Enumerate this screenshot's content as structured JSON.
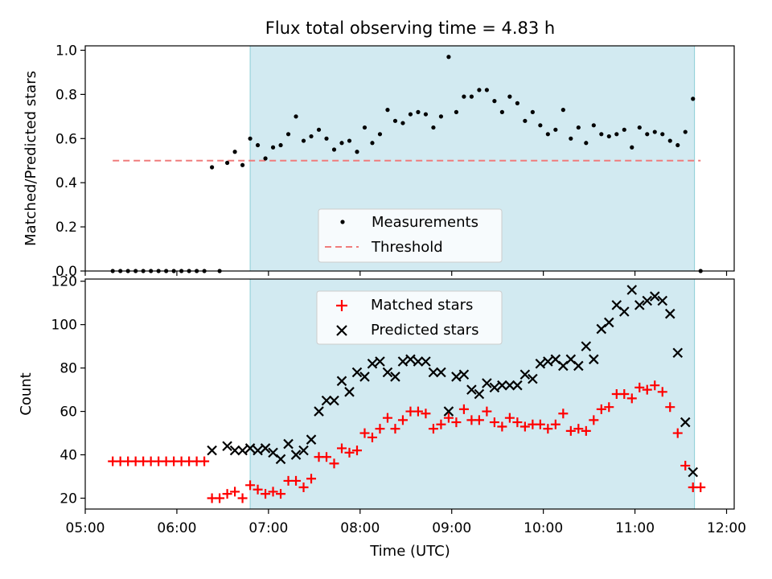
{
  "chart_data": [
    {
      "type": "scatter",
      "title": "Flux total observing time = 4.83 h",
      "xlabel": "",
      "ylabel": "Matched/Predicted stars",
      "xlim": [
        "05:00",
        "12:05"
      ],
      "ylim": [
        0,
        1.02
      ],
      "yticks": [
        0.0,
        0.2,
        0.4,
        0.6,
        0.8,
        1.0
      ],
      "ytick_labels": [
        "0.0",
        "0.2",
        "0.4",
        "0.6",
        "0.8",
        "1.0"
      ],
      "observing_window": [
        "06:48",
        "11:39"
      ],
      "legend_position": "lower-center",
      "series": [
        {
          "name": "Measurements",
          "kind": "points",
          "color": "#000000",
          "x": [
            "05:18",
            "05:23",
            "05:28",
            "05:33",
            "05:38",
            "05:43",
            "05:48",
            "05:53",
            "05:58",
            "06:03",
            "06:08",
            "06:13",
            "06:18",
            "06:23",
            "06:28",
            "06:33",
            "06:38",
            "06:43",
            "06:48",
            "06:53",
            "06:58",
            "07:03",
            "07:08",
            "07:13",
            "07:18",
            "07:23",
            "07:28",
            "07:33",
            "07:38",
            "07:43",
            "07:48",
            "07:53",
            "07:58",
            "08:03",
            "08:08",
            "08:13",
            "08:18",
            "08:23",
            "08:28",
            "08:33",
            "08:38",
            "08:43",
            "08:48",
            "08:53",
            "08:58",
            "09:03",
            "09:08",
            "09:13",
            "09:18",
            "09:23",
            "09:28",
            "09:33",
            "09:38",
            "09:43",
            "09:48",
            "09:53",
            "09:58",
            "10:03",
            "10:08",
            "10:13",
            "10:18",
            "10:23",
            "10:28",
            "10:33",
            "10:38",
            "10:43",
            "10:48",
            "10:53",
            "10:58",
            "11:03",
            "11:08",
            "11:13",
            "11:18",
            "11:23",
            "11:28",
            "11:33",
            "11:38",
            "11:43"
          ],
          "y": [
            0,
            0,
            0,
            0,
            0,
            0,
            0,
            0,
            0,
            0,
            0,
            0,
            0,
            0.47,
            0,
            0.49,
            0.54,
            0.48,
            0.6,
            0.57,
            0.51,
            0.56,
            0.57,
            0.62,
            0.7,
            0.59,
            0.61,
            0.64,
            0.6,
            0.55,
            0.58,
            0.59,
            0.54,
            0.65,
            0.58,
            0.62,
            0.73,
            0.68,
            0.67,
            0.71,
            0.72,
            0.71,
            0.65,
            0.7,
            0.97,
            0.72,
            0.79,
            0.79,
            0.82,
            0.82,
            0.77,
            0.72,
            0.79,
            0.76,
            0.68,
            0.72,
            0.66,
            0.62,
            0.64,
            0.73,
            0.6,
            0.65,
            0.58,
            0.66,
            0.62,
            0.61,
            0.62,
            0.64,
            0.56,
            0.65,
            0.62,
            0.63,
            0.62,
            0.59,
            0.57,
            0.63,
            0.78,
            0
          ]
        },
        {
          "name": "Threshold",
          "kind": "dashed-line",
          "color": "#f08080",
          "x": [
            "05:18",
            "11:43"
          ],
          "y": [
            0.5,
            0.5
          ]
        }
      ]
    },
    {
      "type": "scatter",
      "title": "",
      "xlabel": "Time (UTC)",
      "ylabel": "Count",
      "xlim": [
        "05:00",
        "12:05"
      ],
      "ylim": [
        15,
        121
      ],
      "yticks": [
        20,
        40,
        60,
        80,
        100,
        120
      ],
      "ytick_labels": [
        "20",
        "40",
        "60",
        "80",
        "100",
        "120"
      ],
      "xticks": [
        "05:00",
        "06:00",
        "07:00",
        "08:00",
        "09:00",
        "10:00",
        "11:00",
        "12:00"
      ],
      "xtick_labels": [
        "05:00",
        "06:00",
        "07:00",
        "08:00",
        "09:00",
        "10:00",
        "11:00",
        "12:00"
      ],
      "observing_window": [
        "06:48",
        "11:39"
      ],
      "legend_position": "upper-center",
      "series": [
        {
          "name": "Matched stars",
          "marker": "+",
          "color": "#ff0000",
          "x": [
            "05:18",
            "05:23",
            "05:28",
            "05:33",
            "05:38",
            "05:43",
            "05:48",
            "05:53",
            "05:58",
            "06:03",
            "06:08",
            "06:13",
            "06:18",
            "06:23",
            "06:28",
            "06:33",
            "06:38",
            "06:43",
            "06:48",
            "06:53",
            "06:58",
            "07:03",
            "07:08",
            "07:13",
            "07:18",
            "07:23",
            "07:28",
            "07:33",
            "07:38",
            "07:43",
            "07:48",
            "07:53",
            "07:58",
            "08:03",
            "08:08",
            "08:13",
            "08:18",
            "08:23",
            "08:28",
            "08:33",
            "08:38",
            "08:43",
            "08:48",
            "08:53",
            "08:58",
            "09:03",
            "09:08",
            "09:13",
            "09:18",
            "09:23",
            "09:28",
            "09:33",
            "09:38",
            "09:43",
            "09:48",
            "09:53",
            "09:58",
            "10:03",
            "10:08",
            "10:13",
            "10:18",
            "10:23",
            "10:28",
            "10:33",
            "10:38",
            "10:43",
            "10:48",
            "10:53",
            "10:58",
            "11:03",
            "11:08",
            "11:13",
            "11:18",
            "11:23",
            "11:28",
            "11:33",
            "11:38",
            "11:43"
          ],
          "y": [
            37,
            37,
            37,
            37,
            37,
            37,
            37,
            37,
            37,
            37,
            37,
            37,
            37,
            20,
            20,
            22,
            23,
            20,
            26,
            24,
            22,
            23,
            22,
            28,
            28,
            25,
            29,
            39,
            39,
            36,
            43,
            41,
            42,
            50,
            48,
            52,
            57,
            52,
            56,
            60,
            60,
            59,
            52,
            54,
            57,
            55,
            61,
            56,
            56,
            60,
            55,
            53,
            57,
            55,
            53,
            54,
            54,
            52,
            54,
            59,
            51,
            52,
            51,
            56,
            61,
            62,
            68,
            68,
            66,
            71,
            70,
            72,
            69,
            62,
            50,
            35,
            25,
            25
          ]
        },
        {
          "name": "Predicted stars",
          "marker": "x",
          "color": "#000000",
          "x": [
            "06:23",
            "06:33",
            "06:38",
            "06:43",
            "06:48",
            "06:53",
            "06:58",
            "07:03",
            "07:08",
            "07:13",
            "07:18",
            "07:23",
            "07:28",
            "07:33",
            "07:38",
            "07:43",
            "07:48",
            "07:53",
            "07:58",
            "08:03",
            "08:08",
            "08:13",
            "08:18",
            "08:23",
            "08:28",
            "08:33",
            "08:38",
            "08:43",
            "08:48",
            "08:53",
            "08:58",
            "09:03",
            "09:08",
            "09:13",
            "09:18",
            "09:23",
            "09:28",
            "09:33",
            "09:38",
            "09:43",
            "09:48",
            "09:53",
            "09:58",
            "10:03",
            "10:08",
            "10:13",
            "10:18",
            "10:23",
            "10:28",
            "10:33",
            "10:38",
            "10:43",
            "10:48",
            "10:53",
            "10:58",
            "11:03",
            "11:08",
            "11:13",
            "11:18",
            "11:23",
            "11:28",
            "11:33",
            "11:38"
          ],
          "y": [
            42,
            44,
            42,
            42,
            43,
            42,
            43,
            41,
            38,
            45,
            40,
            42,
            47,
            60,
            65,
            65,
            74,
            69,
            78,
            76,
            82,
            83,
            78,
            76,
            83,
            84,
            83,
            83,
            78,
            78,
            60,
            76,
            77,
            70,
            68,
            73,
            71,
            72,
            72,
            72,
            77,
            75,
            82,
            83,
            84,
            81,
            84,
            81,
            90,
            84,
            98,
            101,
            109,
            106,
            116,
            109,
            111,
            113,
            111,
            105,
            87,
            55,
            32
          ]
        }
      ]
    }
  ]
}
